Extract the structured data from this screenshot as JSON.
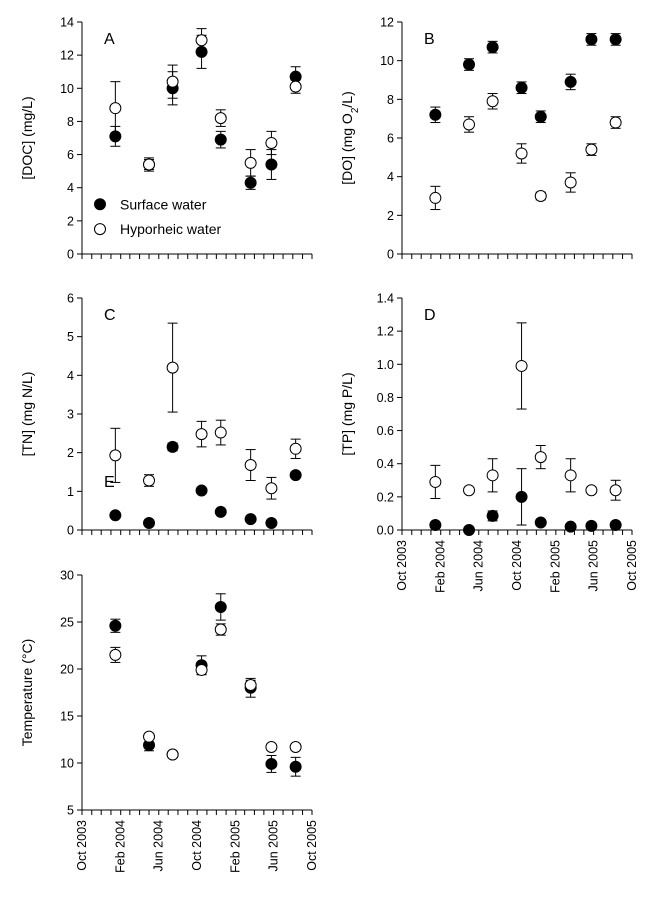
{
  "chart_data": [
    {
      "type": "scatter",
      "panel": "A",
      "ylabel": "[DOC]  (mg/L)",
      "ylim": [
        0,
        14
      ],
      "yticks": [
        0,
        2,
        4,
        6,
        8,
        10,
        12,
        14
      ],
      "xlim": [
        "2003-10-01",
        "2005-10-01"
      ],
      "legend": {
        "placement": "lower-left",
        "entries": [
          "Surface water",
          "Hyporheic water"
        ]
      },
      "series": [
        {
          "name": "Surface water",
          "marker": "filled-circle",
          "x": [
            "2004-01-15",
            "2004-05-01",
            "2004-07-15",
            "2004-10-15",
            "2004-12-15",
            "2005-03-20",
            "2005-05-25",
            "2005-08-10"
          ],
          "y": [
            7.1,
            5.4,
            10.0,
            12.2,
            6.9,
            4.3,
            5.4,
            10.7
          ],
          "err": [
            0.6,
            0.3,
            1.0,
            1.0,
            0.5,
            0.4,
            0.9,
            0.6
          ]
        },
        {
          "name": "Hyporheic water",
          "marker": "open-circle",
          "x": [
            "2004-01-15",
            "2004-05-01",
            "2004-07-15",
            "2004-10-15",
            "2004-12-15",
            "2005-03-20",
            "2005-05-25",
            "2005-08-10"
          ],
          "y": [
            8.8,
            5.4,
            10.4,
            12.9,
            8.2,
            5.5,
            6.7,
            10.1
          ],
          "err": [
            1.6,
            0.4,
            1.0,
            0.7,
            0.5,
            0.8,
            0.7,
            0.4
          ]
        }
      ]
    },
    {
      "type": "scatter",
      "panel": "B",
      "ylabel": "[DO]  (mg O2/L)",
      "ylim": [
        0,
        12
      ],
      "yticks": [
        0,
        2,
        4,
        6,
        8,
        10,
        12
      ],
      "xlim": [
        "2003-10-01",
        "2005-10-01"
      ],
      "series": [
        {
          "name": "Surface water",
          "marker": "filled-circle",
          "x": [
            "2004-01-15",
            "2004-05-01",
            "2004-07-15",
            "2004-10-15",
            "2004-12-15",
            "2005-03-20",
            "2005-05-25",
            "2005-08-10"
          ],
          "y": [
            7.2,
            9.8,
            10.7,
            8.6,
            7.1,
            8.9,
            11.1,
            11.1
          ],
          "err": [
            0.4,
            0.3,
            0.3,
            0.3,
            0.3,
            0.4,
            0.3,
            0.3
          ]
        },
        {
          "name": "Hyporheic water",
          "marker": "open-circle",
          "x": [
            "2004-01-15",
            "2004-05-01",
            "2004-07-15",
            "2004-10-15",
            "2004-12-15",
            "2005-03-20",
            "2005-05-25",
            "2005-08-10"
          ],
          "y": [
            2.9,
            6.7,
            7.9,
            5.2,
            3.0,
            3.7,
            5.4,
            6.8
          ],
          "err": [
            0.6,
            0.4,
            0.4,
            0.5,
            0.2,
            0.5,
            0.3,
            0.3
          ]
        }
      ]
    },
    {
      "type": "scatter",
      "panel": "C",
      "ylabel": "[TN]  (mg N/L)",
      "ylim": [
        0,
        6
      ],
      "yticks": [
        0,
        1,
        2,
        3,
        4,
        5,
        6
      ],
      "xlim": [
        "2003-10-01",
        "2005-10-01"
      ],
      "series": [
        {
          "name": "Surface water",
          "marker": "filled-circle",
          "x": [
            "2004-01-15",
            "2004-05-01",
            "2004-07-15",
            "2004-10-15",
            "2004-12-15",
            "2005-03-20",
            "2005-05-25",
            "2005-08-10"
          ],
          "y": [
            0.38,
            0.18,
            2.15,
            1.02,
            0.47,
            0.28,
            0.18,
            1.42
          ],
          "err": [
            0.05,
            0.05,
            0.1,
            0.05,
            0.05,
            0.05,
            0.05,
            0.05
          ]
        },
        {
          "name": "Hyporheic water",
          "marker": "open-circle",
          "x": [
            "2004-01-15",
            "2004-05-01",
            "2004-07-15",
            "2004-10-15",
            "2004-12-15",
            "2005-03-20",
            "2005-05-25",
            "2005-08-10"
          ],
          "y": [
            1.93,
            1.28,
            4.2,
            2.48,
            2.52,
            1.68,
            1.08,
            2.1
          ],
          "err": [
            0.7,
            0.15,
            1.15,
            0.33,
            0.32,
            0.4,
            0.28,
            0.25
          ]
        }
      ]
    },
    {
      "type": "scatter",
      "panel": "D",
      "ylabel": "[TP]  (mg P/L)",
      "ylim": [
        0,
        1.4
      ],
      "yticks": [
        0.0,
        0.2,
        0.4,
        0.6,
        0.8,
        1.0,
        1.2,
        1.4
      ],
      "xlim": [
        "2003-10-01",
        "2005-10-01"
      ],
      "xticks": [
        "Oct 2003",
        "Feb 2004",
        "Jun 2004",
        "Oct 2004",
        "Feb 2005",
        "Jun 2005",
        "Oct 2005"
      ],
      "series": [
        {
          "name": "Surface water",
          "marker": "filled-circle",
          "x": [
            "2004-01-15",
            "2004-05-01",
            "2004-07-15",
            "2004-10-15",
            "2004-12-15",
            "2005-03-20",
            "2005-05-25",
            "2005-08-10"
          ],
          "y": [
            0.03,
            0.0,
            0.085,
            0.2,
            0.045,
            0.02,
            0.025,
            0.03
          ],
          "err": [
            0.0,
            0.0,
            0.03,
            0.17,
            0.0,
            0.0,
            0.0,
            0.0
          ]
        },
        {
          "name": "Hyporheic water",
          "marker": "open-circle",
          "x": [
            "2004-01-15",
            "2004-05-01",
            "2004-07-15",
            "2004-10-15",
            "2004-12-15",
            "2005-03-20",
            "2005-05-25",
            "2005-08-10"
          ],
          "y": [
            0.29,
            0.24,
            0.33,
            0.99,
            0.44,
            0.33,
            0.24,
            0.24
          ],
          "err": [
            0.1,
            0.0,
            0.1,
            0.26,
            0.07,
            0.1,
            0.0,
            0.06
          ]
        }
      ]
    },
    {
      "type": "scatter",
      "panel": "E",
      "ylabel": "Temperature  (°C)",
      "ylim": [
        5,
        30
      ],
      "yticks": [
        5,
        10,
        15,
        20,
        25,
        30
      ],
      "xlim": [
        "2003-10-01",
        "2005-10-01"
      ],
      "xticks": [
        "Oct 2003",
        "Feb 2004",
        "Jun 2004",
        "Oct 2004",
        "Feb 2005",
        "Jun 2005",
        "Oct 2005"
      ],
      "series": [
        {
          "name": "Surface water",
          "marker": "filled-circle",
          "x": [
            "2004-01-15",
            "2004-05-01",
            "2004-07-15",
            "2004-10-15",
            "2004-12-15",
            "2005-03-20",
            "2005-05-25",
            "2005-08-10"
          ],
          "y": [
            24.6,
            11.9,
            10.9,
            20.4,
            26.6,
            18.0,
            9.9,
            9.6
          ],
          "err": [
            0.7,
            0.6,
            0.3,
            1.0,
            1.4,
            1.0,
            0.9,
            1.0
          ]
        },
        {
          "name": "Hyporheic water",
          "marker": "open-circle",
          "x": [
            "2004-01-15",
            "2004-05-01",
            "2004-07-15",
            "2004-10-15",
            "2004-12-15",
            "2005-03-20",
            "2005-05-25",
            "2005-08-10"
          ],
          "y": [
            21.5,
            12.8,
            10.9,
            19.9,
            24.2,
            18.3,
            11.7,
            11.7
          ],
          "err": [
            0.8,
            0.3,
            0.3,
            0.5,
            0.6,
            0.5,
            0.3,
            0.3
          ]
        }
      ]
    }
  ]
}
